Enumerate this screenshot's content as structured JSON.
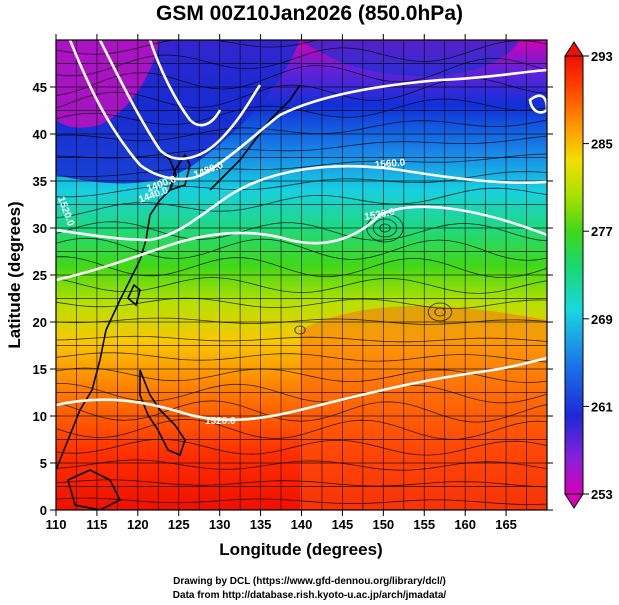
{
  "title": "GSM 00Z10Jan2026 (850.0hPa)",
  "x_axis": {
    "label": "Longitude (degrees)",
    "ticks": [
      "110",
      "115",
      "120",
      "125",
      "130",
      "135",
      "140",
      "145",
      "150",
      "155",
      "160",
      "165"
    ],
    "range": [
      110,
      170
    ]
  },
  "y_axis": {
    "label": "Latitude  (degrees)",
    "ticks": [
      "0",
      "5",
      "10",
      "15",
      "20",
      "25",
      "30",
      "35",
      "40",
      "45"
    ],
    "range": [
      0,
      50
    ]
  },
  "colorbar": {
    "ticks": [
      "253",
      "261",
      "269",
      "277",
      "285",
      "293"
    ],
    "range": [
      253,
      293
    ],
    "colors": [
      "#d400b4",
      "#6a20d8",
      "#1030d8",
      "#1a78e8",
      "#18d8e0",
      "#18d870",
      "#40d818",
      "#a8e000",
      "#f0e000",
      "#ff9800",
      "#ff4000",
      "#ee1000"
    ]
  },
  "contour_labels": {
    "c1": "1520.0",
    "c2": "1520.0",
    "c3": "1400.0",
    "c4": "1440.0",
    "c5": "1480.0",
    "c6": "1520.0",
    "c7": "1560.0"
  },
  "credits": {
    "line1": "Drawing by DCL (https://www.gfd-dennou.org/library/dcl/)",
    "line2": "Data from http://database.rish.kyoto-u.ac.jp/arch/jmadata/"
  }
}
